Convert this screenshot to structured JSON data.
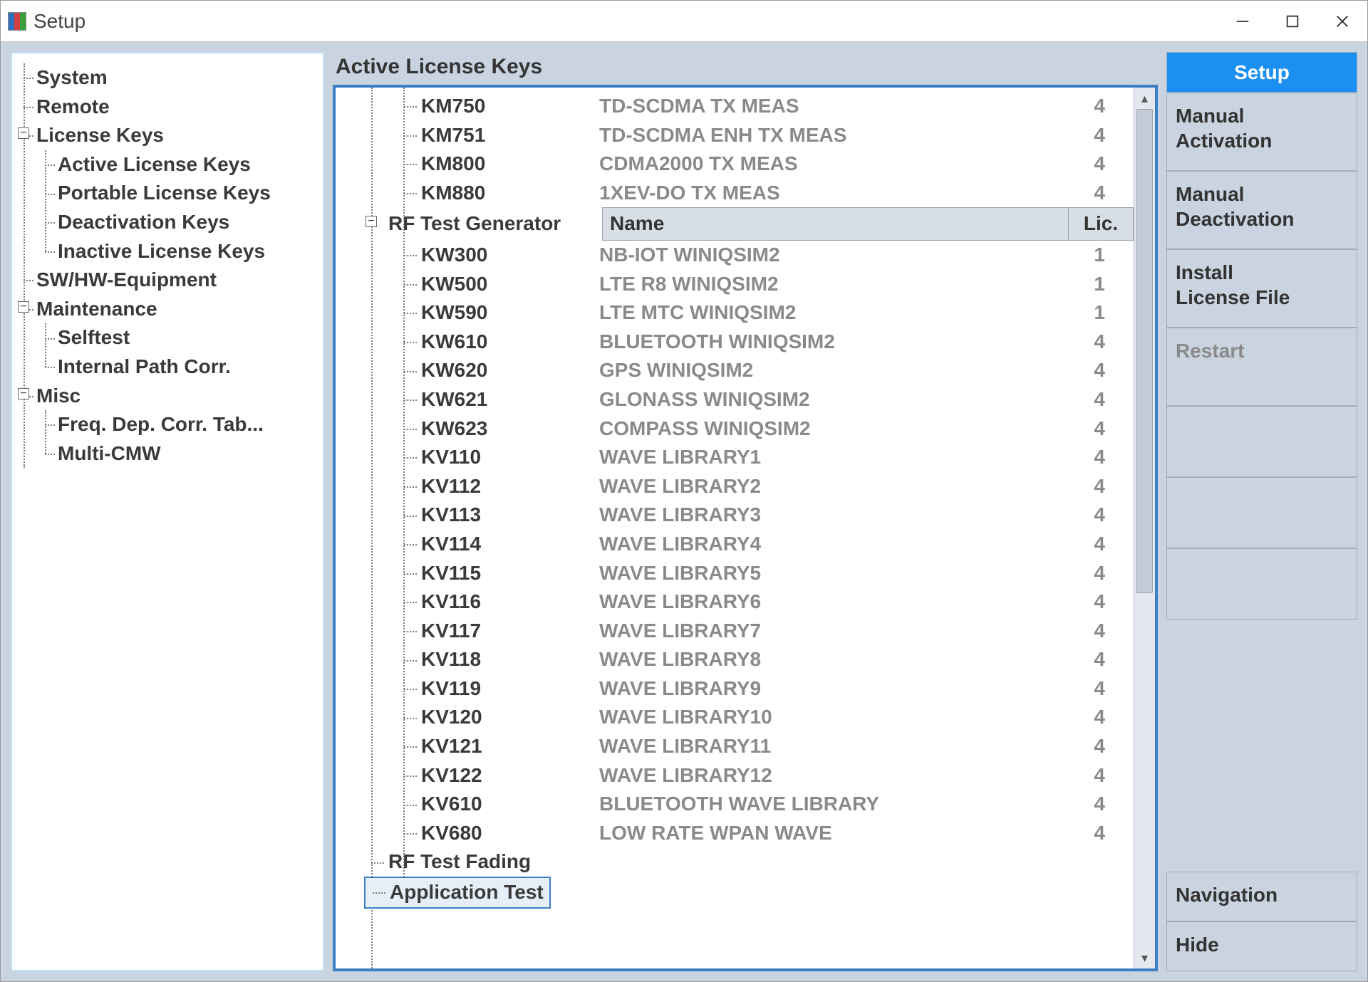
{
  "window": {
    "title": "Setup"
  },
  "tree": {
    "system": "System",
    "remote": "Remote",
    "license_keys": {
      "label": "License Keys",
      "active": "Active License Keys",
      "portable": "Portable License Keys",
      "deactivation": "Deactivation Keys",
      "inactive": "Inactive License Keys"
    },
    "swhw": "SW/HW-Equipment",
    "maintenance": {
      "label": "Maintenance",
      "selftest": "Selftest",
      "pathcorr": "Internal Path Corr."
    },
    "misc": {
      "label": "Misc",
      "freq": "Freq. Dep. Corr. Tab...",
      "multicmw": "Multi-CMW"
    }
  },
  "main": {
    "heading": "Active License Keys",
    "top_items": [
      {
        "code": "KM750",
        "desc": "TD-SCDMA TX MEAS",
        "count": "4"
      },
      {
        "code": "KM751",
        "desc": "TD-SCDMA ENH TX MEAS",
        "count": "4"
      },
      {
        "code": "KM800",
        "desc": "CDMA2000 TX MEAS",
        "count": "4"
      },
      {
        "code": "KM880",
        "desc": "1XEV-DO TX MEAS",
        "count": "4"
      }
    ],
    "group_label": "RF Test Generator",
    "group_header_name": "Name",
    "group_header_lic": "Lic.",
    "group_items": [
      {
        "code": "KW300",
        "desc": "NB-IOT WINIQSIM2",
        "count": "1"
      },
      {
        "code": "KW500",
        "desc": "LTE R8 WINIQSIM2",
        "count": "1"
      },
      {
        "code": "KW590",
        "desc": "LTE MTC WINIQSIM2",
        "count": "1"
      },
      {
        "code": "KW610",
        "desc": "BLUETOOTH WINIQSIM2",
        "count": "4"
      },
      {
        "code": "KW620",
        "desc": "GPS WINIQSIM2",
        "count": "4"
      },
      {
        "code": "KW621",
        "desc": "GLONASS WINIQSIM2",
        "count": "4"
      },
      {
        "code": "KW623",
        "desc": "COMPASS WINIQSIM2",
        "count": "4"
      },
      {
        "code": "KV110",
        "desc": "WAVE LIBRARY1",
        "count": "4"
      },
      {
        "code": "KV112",
        "desc": "WAVE LIBRARY2",
        "count": "4"
      },
      {
        "code": "KV113",
        "desc": "WAVE LIBRARY3",
        "count": "4"
      },
      {
        "code": "KV114",
        "desc": "WAVE LIBRARY4",
        "count": "4"
      },
      {
        "code": "KV115",
        "desc": "WAVE LIBRARY5",
        "count": "4"
      },
      {
        "code": "KV116",
        "desc": "WAVE LIBRARY6",
        "count": "4"
      },
      {
        "code": "KV117",
        "desc": "WAVE LIBRARY7",
        "count": "4"
      },
      {
        "code": "KV118",
        "desc": "WAVE LIBRARY8",
        "count": "4"
      },
      {
        "code": "KV119",
        "desc": "WAVE LIBRARY9",
        "count": "4"
      },
      {
        "code": "KV120",
        "desc": "WAVE LIBRARY10",
        "count": "4"
      },
      {
        "code": "KV121",
        "desc": "WAVE LIBRARY11",
        "count": "4"
      },
      {
        "code": "KV122",
        "desc": "WAVE LIBRARY12",
        "count": "4"
      },
      {
        "code": "KV610",
        "desc": "BLUETOOTH WAVE LIBRARY",
        "count": "4"
      },
      {
        "code": "KV680",
        "desc": "LOW RATE WPAN WAVE",
        "count": "4"
      }
    ],
    "trailing": [
      "RF Test Fading",
      "Application Test"
    ]
  },
  "sidebar": {
    "setup": "Setup",
    "manual_activation": "Manual\nActivation",
    "manual_deactivation": "Manual\nDeactivation",
    "install_file": "Install\nLicense File",
    "restart": "Restart",
    "navigation": "Navigation",
    "hide": "Hide"
  },
  "colors": {
    "workspace_bg": "#c9d4e0",
    "selection_border": "#3a7fc5",
    "primary_btn": "#1b8ff2",
    "header_bg": "#d8dee6",
    "muted_text": "#8a8a8a"
  }
}
